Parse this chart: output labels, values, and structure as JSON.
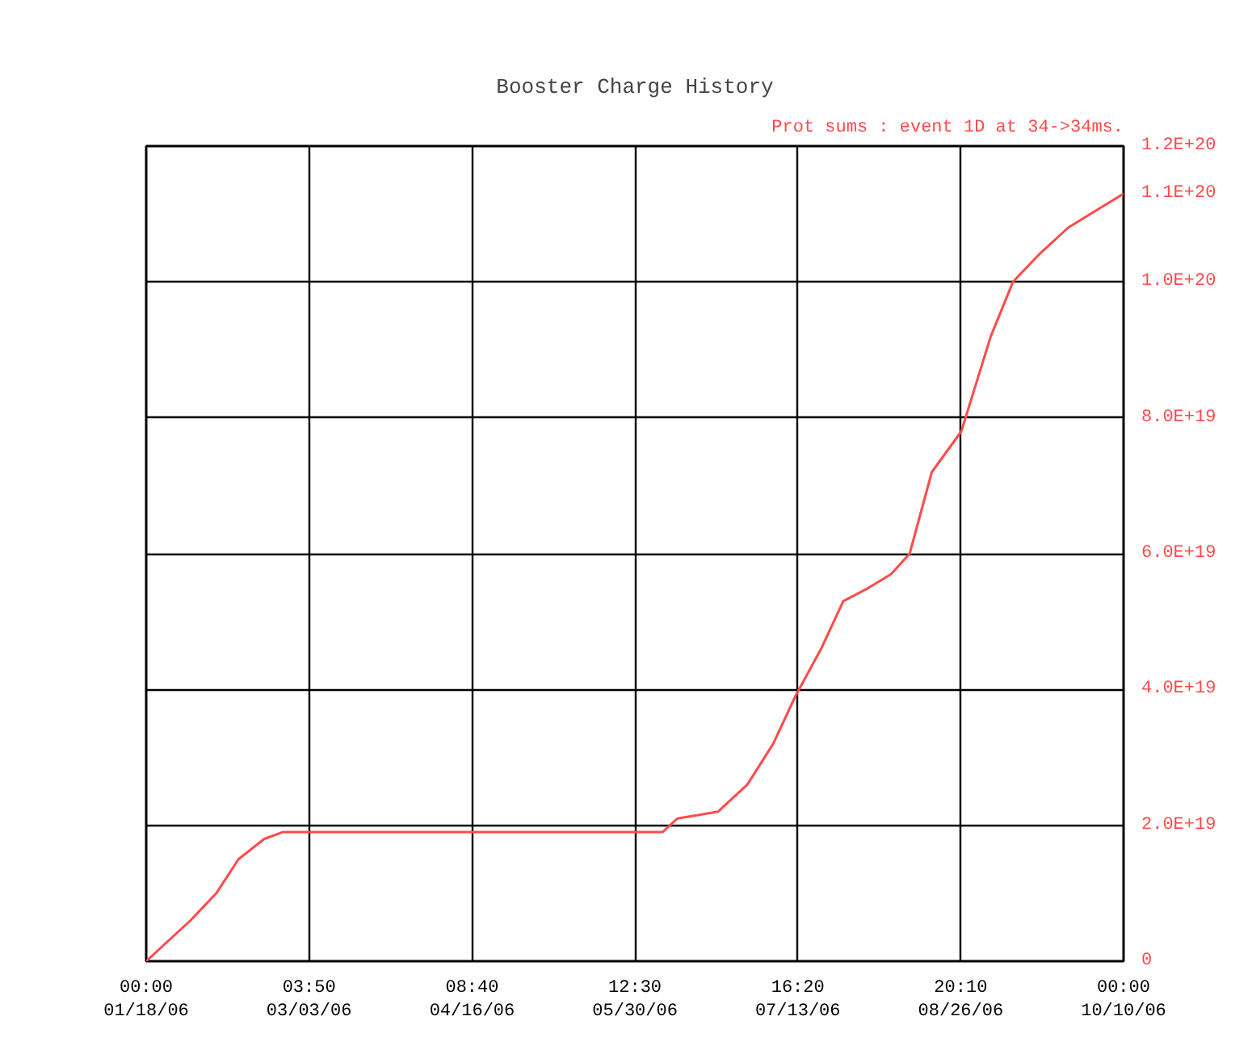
{
  "chart_data": {
    "type": "line",
    "title": "Booster Charge History",
    "annotations": [
      "Prot sums : event 1D at 34->34ms."
    ],
    "x": [
      "2006-01-18",
      "2006-01-24",
      "2006-01-30",
      "2006-02-06",
      "2006-02-12",
      "2006-02-19",
      "2006-02-24",
      "2006-04-18",
      "2006-06-07",
      "2006-06-11",
      "2006-06-22",
      "2006-06-30",
      "2006-07-07",
      "2006-07-13",
      "2006-07-20",
      "2006-07-26",
      "2006-08-02",
      "2006-08-08",
      "2006-08-13",
      "2006-08-19",
      "2006-08-27",
      "2006-09-04",
      "2006-09-10",
      "2006-09-17",
      "2006-09-25",
      "2006-10-10"
    ],
    "series": [
      {
        "color": "#ff4b4b",
        "values": [
          0,
          3e+18,
          6e+18,
          1e+19,
          1.5e+19,
          1.8e+19,
          1.9e+19,
          1.9e+19,
          1.9e+19,
          2.1e+19,
          2.2e+19,
          2.6e+19,
          3.2e+19,
          3.9e+19,
          4.6e+19,
          5.3e+19,
          5.5e+19,
          5.7e+19,
          6e+19,
          7.2e+19,
          7.8e+19,
          9.2e+19,
          1e+20,
          1.04e+20,
          1.08e+20,
          1.13e+20
        ]
      }
    ],
    "xlim": [
      "2006-01-18T00:00",
      "2006-10-10T00:00"
    ],
    "xticks": [
      {
        "value": "2006-01-18T00:00",
        "label": "00:00\n01/18/06"
      },
      {
        "value": "2006-03-03T03:50",
        "label": "03:50\n03/03/06"
      },
      {
        "value": "2006-04-16T08:40",
        "label": "08:40\n04/16/06"
      },
      {
        "value": "2006-05-30T12:30",
        "label": "12:30\n05/30/06"
      },
      {
        "value": "2006-07-13T16:20",
        "label": "16:20\n07/13/06"
      },
      {
        "value": "2006-08-26T20:10",
        "label": "20:10\n08/26/06"
      },
      {
        "value": "2006-10-10T00:00",
        "label": "00:00\n10/10/06"
      }
    ],
    "ylim": [
      0,
      1.2e+20
    ],
    "yticks": [
      0,
      {
        "value": 2e+19,
        "label": "2.0E+19"
      },
      {
        "value": 4e+19,
        "label": "4.0E+19"
      },
      {
        "value": 6e+19,
        "label": "6.0E+19"
      },
      {
        "value": 8e+19,
        "label": "8.0E+19"
      },
      {
        "value": 1e+20,
        "label": "1.0E+20"
      },
      {
        "value": 1.13e+20,
        "label": "1.1E+20"
      },
      {
        "value": 1.2e+20,
        "label": "1.2E+20"
      }
    ],
    "grid": true,
    "marker": "none",
    "line_style": "solid"
  }
}
